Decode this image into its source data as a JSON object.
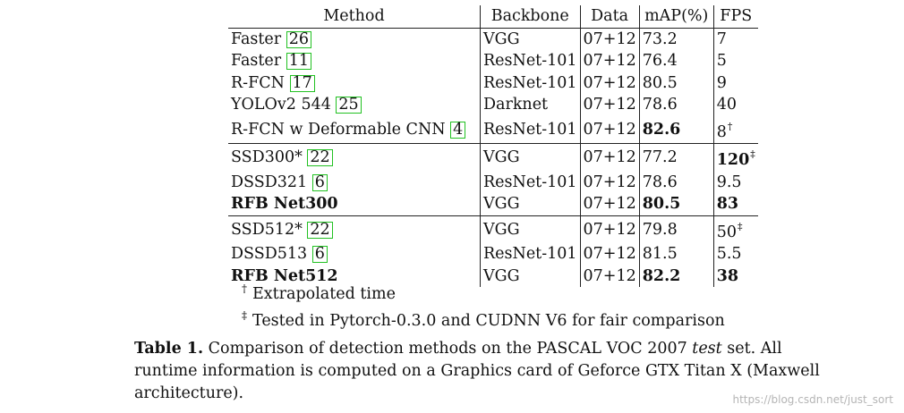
{
  "table": {
    "headers": [
      "Method",
      "Backbone",
      "Data",
      "mAP(%)",
      "FPS"
    ],
    "groups": [
      [
        {
          "method": "Faster ",
          "cite": "26",
          "backbone": "VGG",
          "data": "07+12",
          "map": "73.2",
          "fps": "7",
          "bold_method": false,
          "bold_map": false,
          "bold_fps": false
        },
        {
          "method": "Faster ",
          "cite": "11",
          "backbone": "ResNet-101",
          "data": "07+12",
          "map": "76.4",
          "fps": "5",
          "bold_method": false,
          "bold_map": false,
          "bold_fps": false
        },
        {
          "method": "R-FCN ",
          "cite": "17",
          "backbone": "ResNet-101",
          "data": "07+12",
          "map": "80.5",
          "fps": "9",
          "bold_method": false,
          "bold_map": false,
          "bold_fps": false
        },
        {
          "method": "YOLOv2 544 ",
          "cite": "25",
          "backbone": "Darknet",
          "data": "07+12",
          "map": "78.6",
          "fps": "40",
          "bold_method": false,
          "bold_map": false,
          "bold_fps": false
        },
        {
          "method": "R-FCN w Deformable CNN ",
          "cite": "4",
          "backbone": "ResNet-101",
          "data": "07+12",
          "map": "82.6",
          "fps": "8",
          "fps_mark": "†",
          "bold_method": false,
          "bold_map": true,
          "bold_fps": false
        }
      ],
      [
        {
          "method": "SSD300* ",
          "cite": "22",
          "backbone": "VGG",
          "data": "07+12",
          "map": "77.2",
          "fps": "120",
          "fps_mark": "‡",
          "bold_method": false,
          "bold_map": false,
          "bold_fps": true
        },
        {
          "method": "DSSD321 ",
          "cite": "6",
          "backbone": "ResNet-101",
          "data": "07+12",
          "map": "78.6",
          "fps": "9.5",
          "bold_method": false,
          "bold_map": false,
          "bold_fps": false
        },
        {
          "method": "RFB Net300",
          "cite": "",
          "backbone": "VGG",
          "data": "07+12",
          "map": "80.5",
          "fps": "83",
          "bold_method": true,
          "bold_map": true,
          "bold_fps": true
        }
      ],
      [
        {
          "method": "SSD512* ",
          "cite": "22",
          "backbone": "VGG",
          "data": "07+12",
          "map": "79.8",
          "fps": "50",
          "fps_mark": "‡",
          "bold_method": false,
          "bold_map": false,
          "bold_fps": false
        },
        {
          "method": "DSSD513 ",
          "cite": "6",
          "backbone": "ResNet-101",
          "data": "07+12",
          "map": "81.5",
          "fps": "5.5",
          "bold_method": false,
          "bold_map": false,
          "bold_fps": false
        },
        {
          "method": "RFB Net512",
          "cite": "",
          "backbone": "VGG",
          "data": "07+12",
          "map": "82.2",
          "fps": "38",
          "bold_method": true,
          "bold_map": true,
          "bold_fps": true
        }
      ]
    ]
  },
  "footnotes": {
    "dagger_symbol": "†",
    "dagger_text": "Extrapolated time",
    "ddagger_symbol": "‡",
    "ddagger_text": "Tested in Pytorch-0.3.0 and CUDNN V6 for fair comparison"
  },
  "caption": {
    "label": "Table 1.",
    "text_before": " Comparison of detection methods on the PASCAL VOC 2007 ",
    "emph": "test",
    "text_after": " set. All runtime information is computed on a Graphics card of Geforce GTX Titan X (Maxwell architecture)."
  },
  "watermark": "https://blog.csdn.net/just_sort",
  "colors": {
    "cite_box": "#22c122"
  }
}
